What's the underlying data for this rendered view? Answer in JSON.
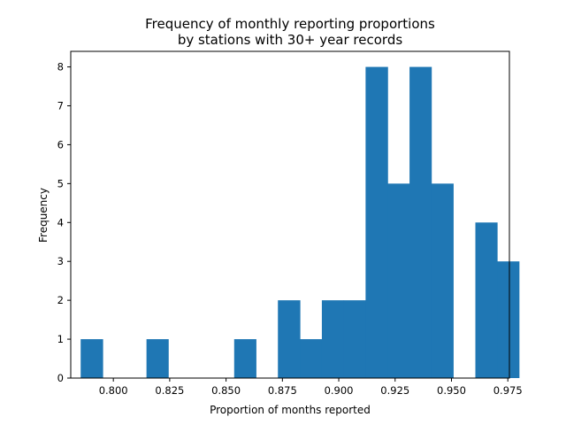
{
  "chart_data": {
    "type": "bar",
    "title_lines": [
      "Frequency of monthly reporting proportions",
      "by stations with 30+ year records"
    ],
    "xlabel": "Proportion of months reported",
    "ylabel": "Frequency",
    "xlim": [
      0.7811,
      0.9757
    ],
    "ylim": [
      0,
      8.4
    ],
    "x_ticks": [
      {
        "value": 0.8,
        "label": "0.800"
      },
      {
        "value": 0.825,
        "label": "0.825"
      },
      {
        "value": 0.85,
        "label": "0.850"
      },
      {
        "value": 0.875,
        "label": "0.875"
      },
      {
        "value": 0.9,
        "label": "0.900"
      },
      {
        "value": 0.925,
        "label": "0.925"
      },
      {
        "value": 0.95,
        "label": "0.950"
      },
      {
        "value": 0.975,
        "label": "0.975"
      }
    ],
    "y_ticks": [
      {
        "value": 0,
        "label": "0"
      },
      {
        "value": 1,
        "label": "1"
      },
      {
        "value": 2,
        "label": "2"
      },
      {
        "value": 3,
        "label": "3"
      },
      {
        "value": 4,
        "label": "4"
      },
      {
        "value": 5,
        "label": "5"
      },
      {
        "value": 6,
        "label": "6"
      },
      {
        "value": 7,
        "label": "7"
      },
      {
        "value": 8,
        "label": "8"
      }
    ],
    "bar_color": "#1f77b4",
    "bins": [
      {
        "start": 0.7855,
        "end": 0.7953,
        "count": 1
      },
      {
        "start": 0.7953,
        "end": 0.805,
        "count": 0
      },
      {
        "start": 0.805,
        "end": 0.8147,
        "count": 0
      },
      {
        "start": 0.8147,
        "end": 0.8244,
        "count": 1
      },
      {
        "start": 0.8244,
        "end": 0.8342,
        "count": 0
      },
      {
        "start": 0.8342,
        "end": 0.8439,
        "count": 0
      },
      {
        "start": 0.8439,
        "end": 0.8536,
        "count": 0
      },
      {
        "start": 0.8536,
        "end": 0.8633,
        "count": 1
      },
      {
        "start": 0.8633,
        "end": 0.873,
        "count": 0
      },
      {
        "start": 0.873,
        "end": 0.8828,
        "count": 2
      },
      {
        "start": 0.8828,
        "end": 0.8925,
        "count": 1
      },
      {
        "start": 0.8925,
        "end": 0.9022,
        "count": 2
      },
      {
        "start": 0.9022,
        "end": 0.9119,
        "count": 2
      },
      {
        "start": 0.9119,
        "end": 0.9217,
        "count": 8
      },
      {
        "start": 0.9217,
        "end": 0.9314,
        "count": 5
      },
      {
        "start": 0.9314,
        "end": 0.9411,
        "count": 8
      },
      {
        "start": 0.9411,
        "end": 0.9508,
        "count": 5
      },
      {
        "start": 0.9508,
        "end": 0.9606,
        "count": 0
      },
      {
        "start": 0.9606,
        "end": 0.9703,
        "count": 4
      },
      {
        "start": 0.9703,
        "end": 0.98,
        "count": 3
      }
    ]
  }
}
